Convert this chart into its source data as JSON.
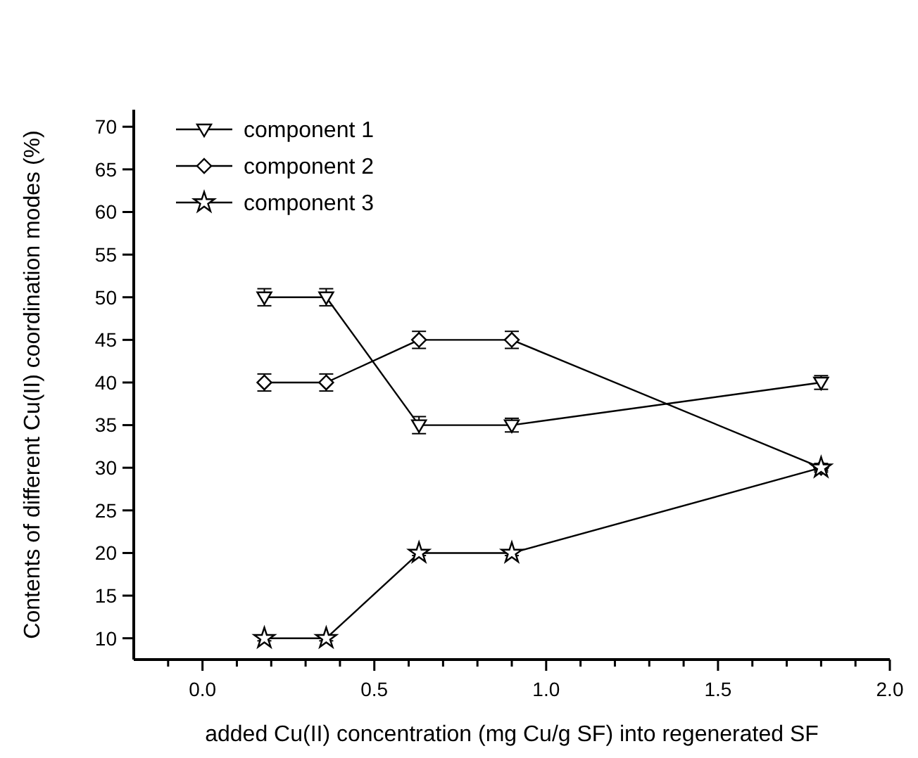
{
  "chart_data": {
    "type": "line",
    "xlabel": "added Cu(II) concentration (mg Cu/g SF) into regenerated SF",
    "ylabel": "Contents of different Cu(II) coordination modes (%)",
    "x": [
      0.18,
      0.36,
      0.63,
      0.9,
      1.8
    ],
    "series": [
      {
        "name": "component 1",
        "color": "#000000",
        "marker": "triangle",
        "values": [
          50,
          50,
          35,
          35,
          40
        ],
        "errors": [
          1,
          1,
          1,
          0.8,
          0.8
        ]
      },
      {
        "name": "component 2",
        "color": "#000000",
        "marker": "diamond",
        "values": [
          40,
          40,
          45,
          45,
          30
        ],
        "errors": [
          1,
          1,
          1,
          1,
          0.5
        ]
      },
      {
        "name": "component 3",
        "color": "#000000",
        "marker": "star",
        "values": [
          10,
          10,
          20,
          20,
          30
        ],
        "errors": [
          0.3,
          0.3,
          0.3,
          0.3,
          0.3
        ]
      }
    ],
    "xlim": [
      -0.2,
      2.0
    ],
    "xticks": [
      {
        "value": -0.1,
        "label": null
      },
      {
        "value": 0,
        "label": "0.0"
      },
      {
        "value": 0.1,
        "label": null
      },
      {
        "value": 0.2,
        "label": null
      },
      {
        "value": 0.3,
        "label": null
      },
      {
        "value": 0.4,
        "label": null
      },
      0.5,
      {
        "value": 0.6,
        "label": null
      },
      {
        "value": 0.7,
        "label": null
      },
      {
        "value": 0.8,
        "label": null
      },
      {
        "value": 0.9,
        "label": null
      },
      {
        "value": 1,
        "label": "1.0"
      },
      {
        "value": 1.1,
        "label": null
      },
      {
        "value": 1.2,
        "label": null
      },
      {
        "value": 1.3,
        "label": null
      },
      {
        "value": 1.4,
        "label": null
      },
      1.5,
      {
        "value": 1.6,
        "label": null
      },
      {
        "value": 1.7,
        "label": null
      },
      {
        "value": 1.8,
        "label": null
      },
      {
        "value": 1.9,
        "label": null
      },
      {
        "value": 2,
        "label": "2.0"
      }
    ],
    "ylim": [
      7.5,
      72
    ],
    "yticks": [
      10,
      15,
      20,
      25,
      30,
      35,
      40,
      45,
      50,
      55,
      60,
      65,
      70
    ],
    "legend": "top left",
    "line_style": "solid",
    "grid": false
  }
}
